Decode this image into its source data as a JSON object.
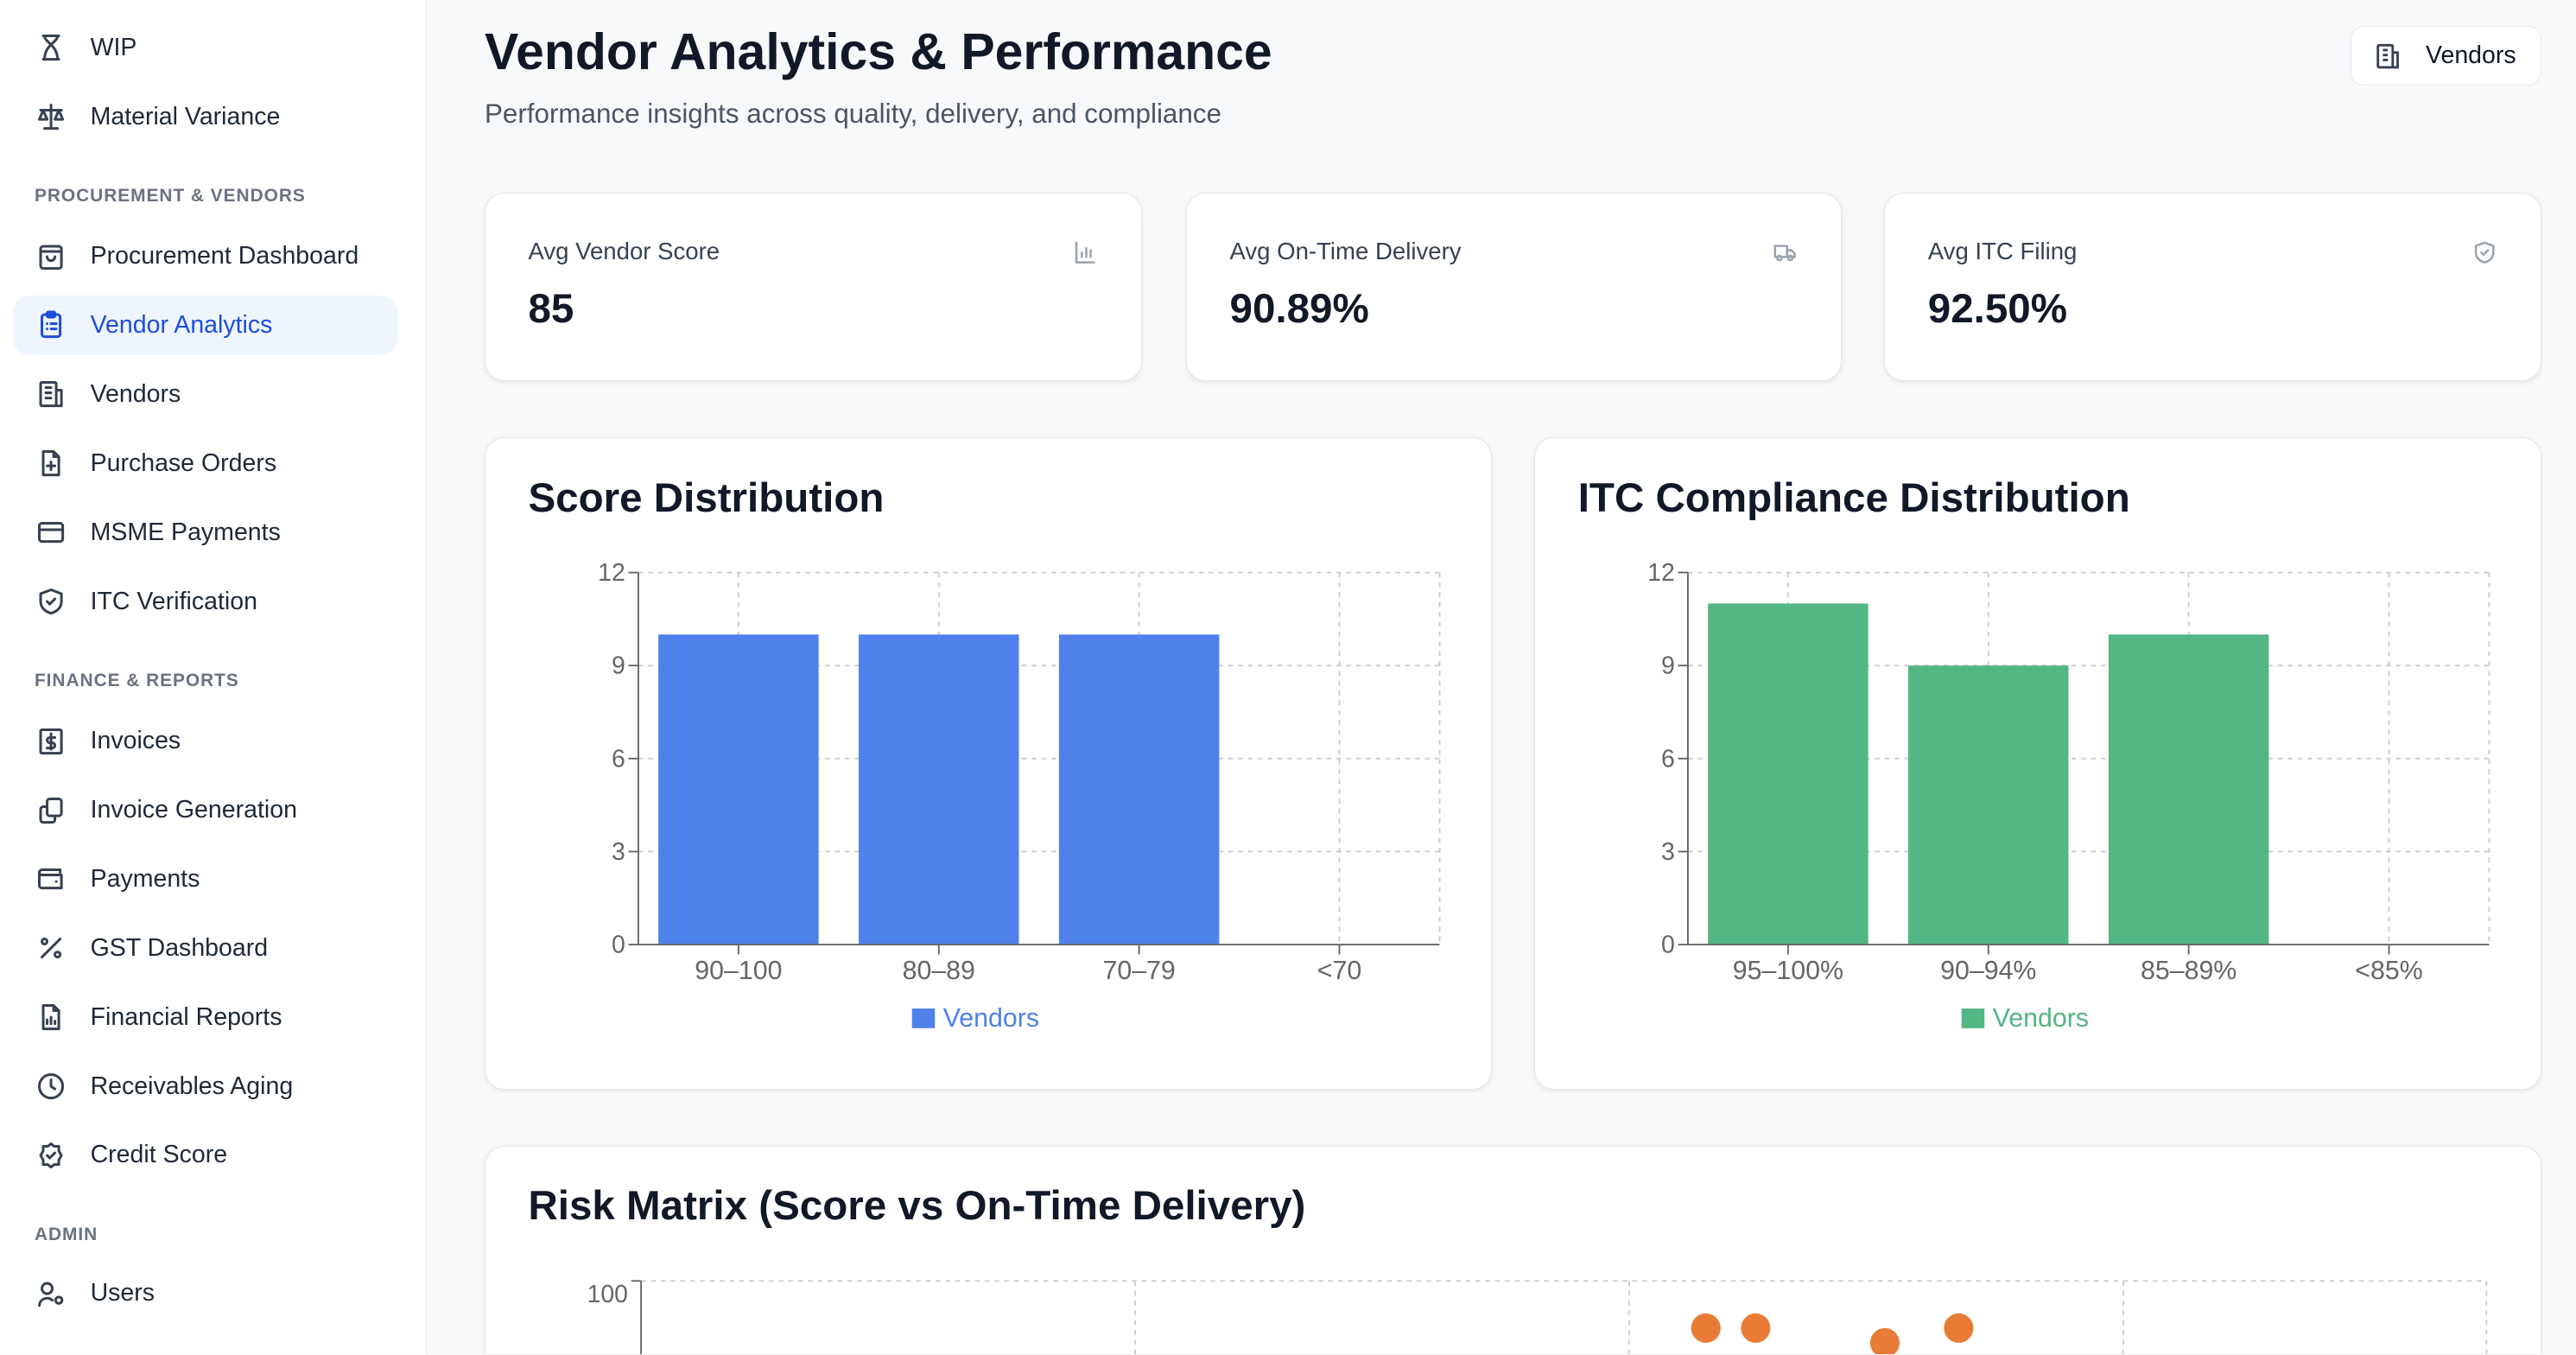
{
  "sidebar": {
    "items_top": [
      {
        "label": "WIP",
        "icon": "hourglass-icon"
      },
      {
        "label": "Material Variance",
        "icon": "scale-icon"
      }
    ],
    "sections": [
      {
        "title": "PROCUREMENT & VENDORS",
        "items": [
          {
            "label": "Procurement Dashboard",
            "icon": "shopping-bag-icon"
          },
          {
            "label": "Vendor Analytics",
            "icon": "clipboard-list-icon",
            "active": true
          },
          {
            "label": "Vendors",
            "icon": "building-icon"
          },
          {
            "label": "Purchase Orders",
            "icon": "file-plus-icon"
          },
          {
            "label": "MSME Payments",
            "icon": "credit-card-icon"
          },
          {
            "label": "ITC Verification",
            "icon": "shield-check-icon"
          }
        ]
      },
      {
        "title": "FINANCE & REPORTS",
        "items": [
          {
            "label": "Invoices",
            "icon": "dollar-file-icon"
          },
          {
            "label": "Invoice Generation",
            "icon": "copy-files-icon"
          },
          {
            "label": "Payments",
            "icon": "wallet-icon"
          },
          {
            "label": "GST Dashboard",
            "icon": "percent-icon"
          },
          {
            "label": "Financial Reports",
            "icon": "file-chart-icon"
          },
          {
            "label": "Receivables Aging",
            "icon": "clock-icon"
          },
          {
            "label": "Credit Score",
            "icon": "badge-check-icon"
          }
        ]
      },
      {
        "title": "ADMIN",
        "items": [
          {
            "label": "Users",
            "icon": "user-cog-icon"
          }
        ]
      }
    ]
  },
  "header": {
    "title": "Vendor Analytics & Performance",
    "subtitle": "Performance insights across quality, delivery, and compliance",
    "vendors_button": "Vendors"
  },
  "kpis": [
    {
      "label": "Avg Vendor Score",
      "value": "85",
      "icon": "bar-chart-icon"
    },
    {
      "label": "Avg On-Time Delivery",
      "value": "90.89%",
      "icon": "truck-icon"
    },
    {
      "label": "Avg ITC Filing",
      "value": "92.50%",
      "icon": "shield-check-icon"
    }
  ],
  "chart_data": [
    {
      "type": "bar",
      "title": "Score Distribution",
      "categories": [
        "90–100",
        "80–89",
        "70–79",
        "<70"
      ],
      "series": [
        {
          "name": "Vendors",
          "values": [
            10,
            10,
            10,
            0
          ]
        }
      ],
      "ylim": [
        0,
        12
      ],
      "yticks": [
        "0",
        "3",
        "6",
        "9",
        "12"
      ],
      "grid": true,
      "legend": "bottom",
      "color": "#4f81ea"
    },
    {
      "type": "bar",
      "title": "ITC Compliance Distribution",
      "categories": [
        "95–100%",
        "90–94%",
        "85–89%",
        "<85%"
      ],
      "series": [
        {
          "name": "Vendors",
          "values": [
            11,
            9,
            10,
            0
          ]
        }
      ],
      "ylim": [
        0,
        12
      ],
      "yticks": [
        "0",
        "3",
        "6",
        "9",
        "12"
      ],
      "grid": true,
      "legend": "bottom",
      "color": "#52b685"
    },
    {
      "type": "scatter",
      "title": "Risk Matrix (Score vs On-Time Delivery)",
      "yticks_visible": [
        "100"
      ],
      "ylim_top": 100,
      "points": [
        {
          "x": 57.7,
          "y": 94
        },
        {
          "x": 60.4,
          "y": 94
        },
        {
          "x": 67.4,
          "y": 92
        },
        {
          "x": 71.4,
          "y": 94
        }
      ],
      "xlim": [
        0,
        100
      ],
      "grid": true,
      "color": "#e87c37"
    }
  ]
}
